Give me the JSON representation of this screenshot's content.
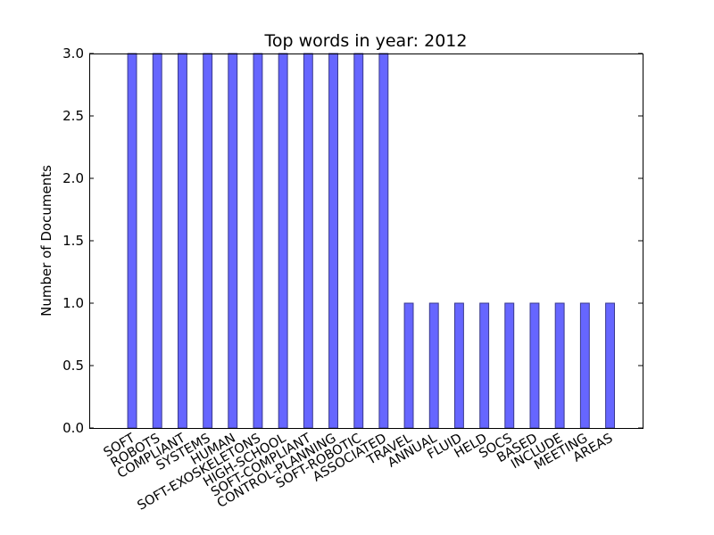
{
  "chart_data": {
    "type": "bar",
    "title": "Top words in year: 2012",
    "xlabel": "",
    "ylabel": "Number of Documents",
    "categories": [
      "SOFT",
      "ROBOTS",
      "COMPLIANT",
      "SYSTEMS",
      "HUMAN",
      "SOFT-EXOSKELETONS",
      "HIGH-SCHOOL",
      "SOFT-COMPLIANT",
      "CONTROL-PLANNING",
      "SOFT-ROBOTIC",
      "ASSOCIATED",
      "TRAVEL",
      "ANNUAL",
      "FLUID",
      "HELD",
      "SOCS",
      "BASED",
      "INCLUDE",
      "MEETING",
      "AREAS"
    ],
    "values": [
      3,
      3,
      3,
      3,
      3,
      3,
      3,
      3,
      3,
      3,
      3,
      1,
      1,
      1,
      1,
      1,
      1,
      1,
      1,
      1
    ],
    "ylim": [
      0,
      3.0
    ],
    "yticks": [
      "0.0",
      "0.5",
      "1.0",
      "1.5",
      "2.0",
      "2.5",
      "3.0"
    ],
    "grid": false,
    "bar_color": "#6666ff",
    "bar_edge_color": "#3a3a8c"
  }
}
